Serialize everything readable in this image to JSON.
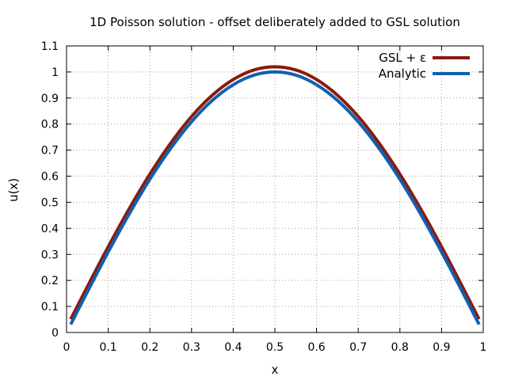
{
  "chart_data": {
    "type": "line",
    "title": "1D Poisson solution - offset deliberately added to GSL solution",
    "xlabel": "x",
    "ylabel": "u(x)",
    "xlim": [
      0,
      1
    ],
    "ylim": [
      0,
      1.1
    ],
    "x_ticks": [
      "0",
      "0.1",
      "0.2",
      "0.3",
      "0.4",
      "0.5",
      "0.6",
      "0.7",
      "0.8",
      "0.9",
      "1"
    ],
    "x_tick_values": [
      0,
      0.1,
      0.2,
      0.3,
      0.4,
      0.5,
      0.6,
      0.7,
      0.8,
      0.9,
      1
    ],
    "y_ticks": [
      "0",
      "0.1",
      "0.2",
      "0.3",
      "0.4",
      "0.5",
      "0.6",
      "0.7",
      "0.8",
      "0.9",
      "1",
      "1.1"
    ],
    "y_tick_values": [
      0,
      0.1,
      0.2,
      0.3,
      0.4,
      0.5,
      0.6,
      0.7,
      0.8,
      0.9,
      1,
      1.1
    ],
    "grid": true,
    "legend_position": "top-right",
    "x": [
      0.01,
      0.05,
      0.1,
      0.15,
      0.2,
      0.25,
      0.3,
      0.35,
      0.4,
      0.45,
      0.5,
      0.55,
      0.6,
      0.65,
      0.7,
      0.75,
      0.8,
      0.85,
      0.9,
      0.95,
      0.99
    ],
    "series": [
      {
        "name": "GSL + ε",
        "color": "#8b1a0e",
        "values": [
          0.051,
          0.176,
          0.329,
          0.474,
          0.608,
          0.727,
          0.829,
          0.911,
          0.971,
          1.008,
          1.02,
          1.008,
          0.971,
          0.911,
          0.829,
          0.727,
          0.608,
          0.474,
          0.329,
          0.176,
          0.051
        ]
      },
      {
        "name": "Analytic",
        "color": "#1060b0",
        "values": [
          0.031,
          0.156,
          0.309,
          0.454,
          0.588,
          0.707,
          0.809,
          0.891,
          0.951,
          0.988,
          1.0,
          0.988,
          0.951,
          0.891,
          0.809,
          0.707,
          0.588,
          0.454,
          0.309,
          0.156,
          0.031
        ]
      }
    ]
  }
}
